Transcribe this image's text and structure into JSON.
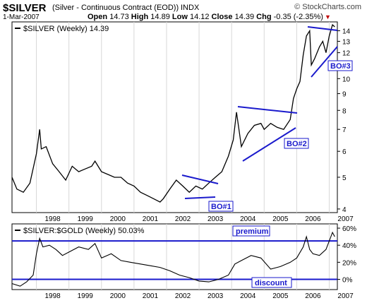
{
  "header": {
    "symbol": "$SILVER",
    "description": "(Silver - Continuous Contract (EOD))",
    "exchange": "INDX",
    "brand": "© StockCharts.com",
    "date": "1-Mar-2007",
    "open_label": "Open",
    "open": "14.73",
    "high_label": "High",
    "high": "14.89",
    "low_label": "Low",
    "low": "14.12",
    "close_label": "Close",
    "close": "14.39",
    "chg_label": "Chg",
    "chg": "-0.35 (-2.35%)",
    "chg_arrow": "▼"
  },
  "chart_data": [
    {
      "type": "line",
      "legend": "$SILVER (Weekly) 14.39",
      "x_ticks": [
        "1998",
        "1999",
        "2000",
        "2001",
        "2002",
        "2003",
        "2004",
        "2005",
        "2006",
        "2007"
      ],
      "y_ticks": [
        4,
        5,
        6,
        7,
        8,
        9,
        10,
        11,
        12,
        13,
        14
      ],
      "y_scale": "log",
      "ylim": [
        3.9,
        14.9
      ],
      "xlim": [
        1997.25,
        2007.25
      ],
      "series": [
        {
          "x": [
            1997.25,
            1997.4,
            1997.6,
            1997.8,
            1998.0,
            1998.1,
            1998.15,
            1998.3,
            1998.5,
            1998.7,
            1998.9,
            1999.1,
            1999.3,
            1999.5,
            1999.7,
            1999.8,
            2000.0,
            2000.2,
            2000.4,
            2000.6,
            2000.8,
            2001.0,
            2001.2,
            2001.4,
            2001.6,
            2001.8,
            2001.9,
            2002.1,
            2002.3,
            2002.5,
            2002.7,
            2002.9,
            2003.1,
            2003.3,
            2003.5,
            2003.7,
            2003.9,
            2004.05,
            2004.15,
            2004.3,
            2004.5,
            2004.7,
            2004.9,
            2005.0,
            2005.2,
            2005.4,
            2005.6,
            2005.8,
            2005.9,
            2006.0,
            2006.1,
            2006.2,
            2006.3,
            2006.4,
            2006.45,
            2006.55,
            2006.7,
            2006.8,
            2006.9,
            2007.0,
            2007.1,
            2007.17
          ],
          "y": [
            5.0,
            4.6,
            4.5,
            4.8,
            5.9,
            7.0,
            6.1,
            6.2,
            5.5,
            5.2,
            4.9,
            5.4,
            5.2,
            5.3,
            5.4,
            5.6,
            5.2,
            5.1,
            5.0,
            5.0,
            4.8,
            4.7,
            4.5,
            4.4,
            4.3,
            4.2,
            4.3,
            4.6,
            4.9,
            4.7,
            4.5,
            4.7,
            4.6,
            4.8,
            5.0,
            5.2,
            5.8,
            6.5,
            7.9,
            6.2,
            6.8,
            7.2,
            7.3,
            7.0,
            7.3,
            7.1,
            7.0,
            7.5,
            8.7,
            9.3,
            9.8,
            11.8,
            13.5,
            14.0,
            11.0,
            11.5,
            12.5,
            13.0,
            12.0,
            13.5,
            14.6,
            14.39
          ]
        }
      ],
      "annotations": [
        "BO#1",
        "BO#2",
        "BO#3"
      ]
    },
    {
      "type": "line",
      "legend": "$SILVER:$GOLD (Weekly) 50.03%",
      "x_ticks": [
        "1998",
        "1999",
        "2000",
        "2001",
        "2002",
        "2003",
        "2004",
        "2005",
        "2006",
        "2007"
      ],
      "y_ticks": [
        "60%",
        "40%",
        "20%",
        "0%"
      ],
      "y_values": [
        60,
        40,
        20,
        0
      ],
      "ylim": [
        -12,
        65
      ],
      "xlim": [
        1997.25,
        2007.25
      ],
      "series": [
        {
          "x": [
            1997.25,
            1997.5,
            1997.7,
            1997.9,
            1998.0,
            1998.1,
            1998.2,
            1998.4,
            1998.6,
            1998.8,
            1999.0,
            1999.3,
            1999.6,
            1999.8,
            2000.0,
            2000.3,
            2000.6,
            2000.9,
            2001.2,
            2001.5,
            2001.8,
            2002.1,
            2002.4,
            2002.7,
            2003.0,
            2003.3,
            2003.6,
            2003.9,
            2004.1,
            2004.3,
            2004.6,
            2004.9,
            2005.2,
            2005.5,
            2005.8,
            2006.0,
            2006.2,
            2006.3,
            2006.4,
            2006.5,
            2006.7,
            2006.9,
            2007.0,
            2007.1,
            2007.17
          ],
          "y": [
            -5,
            -8,
            -3,
            5,
            30,
            48,
            38,
            40,
            35,
            28,
            32,
            38,
            35,
            42,
            25,
            30,
            22,
            20,
            18,
            16,
            14,
            10,
            5,
            2,
            -2,
            -3,
            0,
            5,
            18,
            22,
            28,
            25,
            12,
            15,
            20,
            25,
            38,
            50,
            35,
            30,
            28,
            35,
            45,
            55,
            50.03
          ]
        }
      ],
      "h_lines": [
        45,
        0
      ],
      "annotations": [
        "premium",
        "discount"
      ]
    }
  ]
}
